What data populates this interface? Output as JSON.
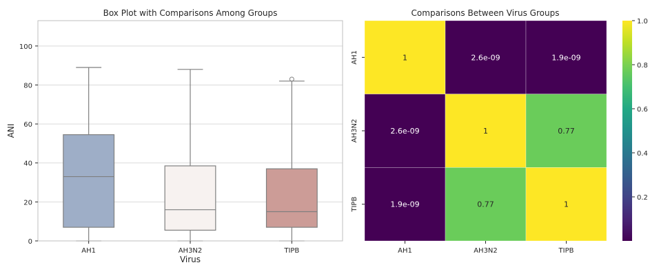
{
  "chart_data": [
    {
      "type": "box",
      "title": "Box Plot with Comparisons Among Groups",
      "xlabel": "Virus",
      "ylabel": "ANI",
      "ylim": [
        0,
        113
      ],
      "yticks": [
        0,
        20,
        40,
        60,
        80,
        100
      ],
      "grid": true,
      "categories": [
        "AH1",
        "AH3N2",
        "TIPB"
      ],
      "boxes": [
        {
          "name": "AH1",
          "whisker_low": 0,
          "q1": 7,
          "median": 33,
          "q3": 54.5,
          "whisker_high": 89,
          "outliers": [],
          "color": "#9EAEC7"
        },
        {
          "name": "AH3N2",
          "whisker_low": 0,
          "q1": 5.5,
          "median": 16,
          "q3": 38.5,
          "whisker_high": 88,
          "outliers": [],
          "color": "#F7F2F0"
        },
        {
          "name": "TIPB",
          "whisker_low": 0,
          "q1": 7,
          "median": 15,
          "q3": 37,
          "whisker_high": 82,
          "outliers": [
            83
          ],
          "color": "#CC9C97"
        }
      ]
    },
    {
      "type": "heatmap",
      "title": "Comparisons Between Virus Groups",
      "rows": [
        "AH1",
        "AH3N2",
        "TIPB"
      ],
      "columns": [
        "AH1",
        "AH3N2",
        "TIPB"
      ],
      "values": [
        [
          1,
          2.6e-09,
          1.9e-09
        ],
        [
          2.6e-09,
          1,
          0.77
        ],
        [
          1.9e-09,
          0.77,
          1
        ]
      ],
      "labels": [
        [
          "1",
          "2.6e-09",
          "1.9e-09"
        ],
        [
          "2.6e-09",
          "1",
          "0.77"
        ],
        [
          "1.9e-09",
          "0.77",
          "1"
        ]
      ],
      "colormap": "viridis",
      "colorbar": {
        "range": [
          0,
          1
        ],
        "ticks": [
          "0.2",
          "0.4",
          "0.6",
          "0.8",
          "1.0"
        ],
        "tick_values": [
          0.2,
          0.4,
          0.6,
          0.8,
          1.0
        ]
      }
    }
  ],
  "colors": {
    "box_edge": "#7F7F7F",
    "grid": "#DADADA",
    "axis": "#BFBFBF",
    "text": "#262626"
  }
}
